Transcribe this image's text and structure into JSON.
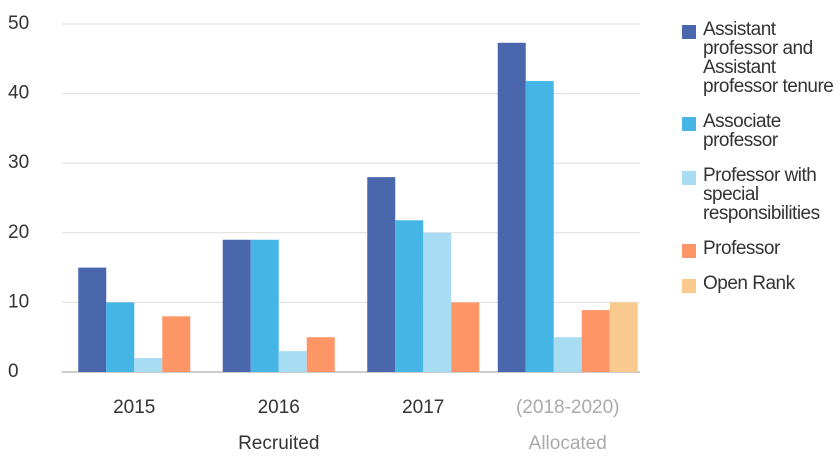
{
  "chart_data": {
    "type": "bar",
    "categories": [
      "2015",
      "2016",
      "2017",
      "(2018-2020)"
    ],
    "x_groups": [
      {
        "label": "Recruited",
        "count": 3,
        "color": "#333333"
      },
      {
        "label": "Allocated",
        "count": 1,
        "color": "#aaaaaa"
      }
    ],
    "series": [
      {
        "name": "Assistant professor and Assistant professor tenure",
        "color": "#4a66ad",
        "values": [
          15,
          19,
          28,
          47.3
        ]
      },
      {
        "name": "Associate professor",
        "color": "#45b5e6",
        "values": [
          10,
          19,
          21.8,
          41.8
        ]
      },
      {
        "name": "Professor with special responsibilities",
        "color": "#a8dcf2",
        "values": [
          2,
          3,
          20,
          5
        ]
      },
      {
        "name": "Professor",
        "color": "#fd9566",
        "values": [
          8,
          5,
          10,
          8.9
        ]
      },
      {
        "name": "Open Rank",
        "color": "#f9c98e",
        "values": [
          null,
          null,
          null,
          10
        ]
      }
    ],
    "ylim": [
      0,
      50
    ],
    "yticks": [
      0,
      10,
      20,
      30,
      40,
      50
    ],
    "grid": true,
    "legend": "right"
  }
}
